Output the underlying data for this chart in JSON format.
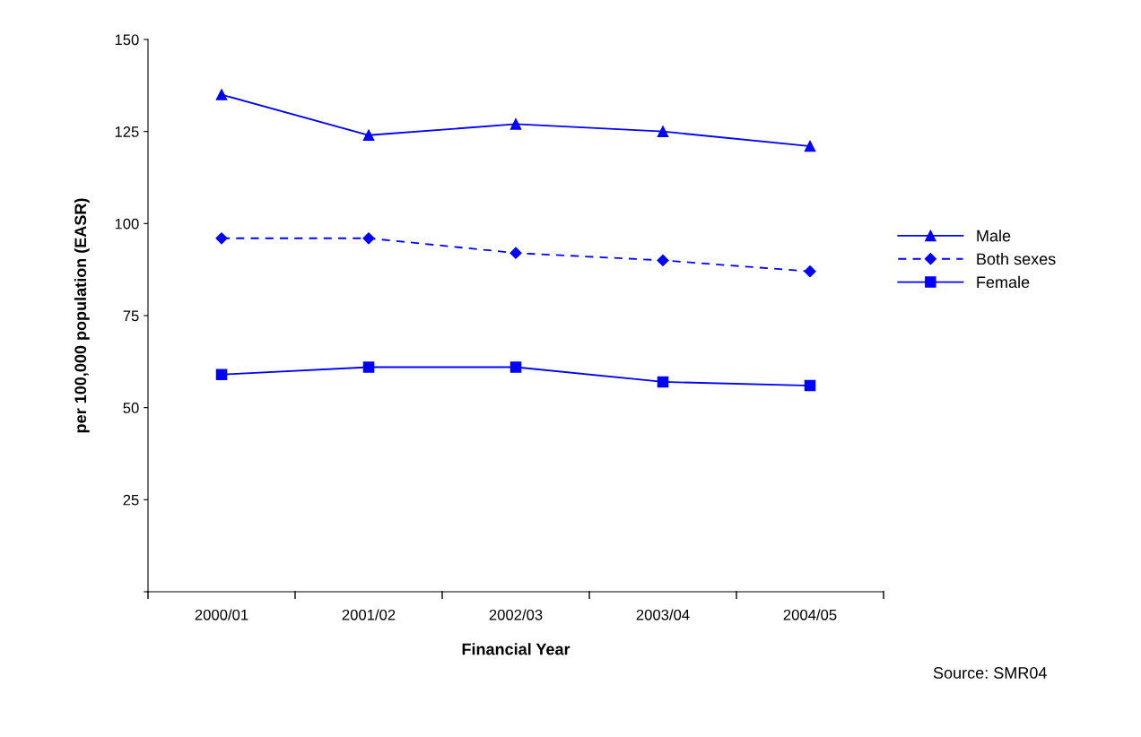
{
  "chart_data": {
    "type": "line",
    "categories": [
      "2000/01",
      "2001/02",
      "2002/03",
      "2003/04",
      "2004/05"
    ],
    "series": [
      {
        "name": "Male",
        "color": "#0000ff",
        "marker": "triangle",
        "line_style": "solid",
        "values": [
          135,
          124,
          127,
          125,
          121
        ]
      },
      {
        "name": "Both sexes",
        "color": "#0000ff",
        "marker": "diamond",
        "line_style": "dashed",
        "values": [
          96,
          96,
          92,
          90,
          87
        ]
      },
      {
        "name": "Female",
        "color": "#0000ff",
        "marker": "square",
        "line_style": "solid",
        "values": [
          59,
          61,
          61,
          57,
          56
        ]
      }
    ],
    "xlabel": "Financial Year",
    "ylabel": "per 100,000 population (EASR)",
    "ylim": [
      0,
      150
    ],
    "yticks": [
      {
        "value": 0,
        "label": null
      },
      25,
      50,
      75,
      100,
      125,
      150
    ],
    "grid": false,
    "legend": "right",
    "annotations": [
      "Source: SMR04"
    ]
  }
}
